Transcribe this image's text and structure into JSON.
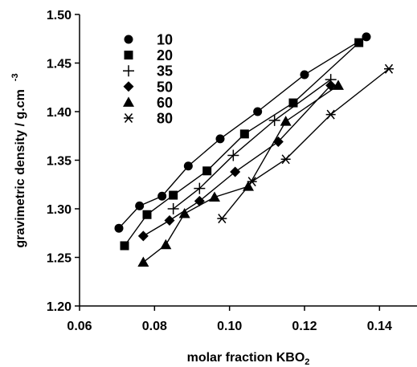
{
  "chart_data": {
    "type": "scatter",
    "title": "",
    "xlabel": "molar fraction KBO",
    "xlabel_subscript": "2",
    "ylabel": "gravimetric density / g.cm",
    "ylabel_superscript": "-3",
    "xlim": [
      0.06,
      0.15
    ],
    "ylim": [
      1.2,
      1.5
    ],
    "x_ticks": [
      "0.06",
      "0.08",
      "0.10",
      "0.12",
      "0.14"
    ],
    "x_tick_values": [
      0.06,
      0.08,
      0.1,
      0.12,
      0.14
    ],
    "y_ticks": [
      "1.20",
      "1.25",
      "1.30",
      "1.35",
      "1.40",
      "1.45",
      "1.50"
    ],
    "y_tick_values": [
      1.2,
      1.25,
      1.3,
      1.35,
      1.4,
      1.45,
      1.5
    ],
    "grid": false,
    "legend_position": "top-left",
    "series": [
      {
        "name": "10",
        "marker": "circle",
        "x": [
          0.0705,
          0.076,
          0.082,
          0.089,
          0.0975,
          0.1075,
          0.12,
          0.1365
        ],
        "y": [
          1.28,
          1.303,
          1.313,
          1.344,
          1.372,
          1.4,
          1.438,
          1.477
        ]
      },
      {
        "name": "20",
        "marker": "square",
        "x": [
          0.072,
          0.078,
          0.085,
          0.094,
          0.104,
          0.117,
          0.1345
        ],
        "y": [
          1.262,
          1.294,
          1.314,
          1.339,
          1.377,
          1.409,
          1.471
        ]
      },
      {
        "name": "35",
        "marker": "plus",
        "x": [
          0.085,
          0.092,
          0.101,
          0.112,
          0.127
        ],
        "y": [
          1.3,
          1.321,
          1.355,
          1.391,
          1.433
        ]
      },
      {
        "name": "50",
        "marker": "diamond",
        "x": [
          0.077,
          0.084,
          0.092,
          0.1015,
          0.113,
          0.127
        ],
        "y": [
          1.272,
          1.288,
          1.308,
          1.338,
          1.369,
          1.427
        ]
      },
      {
        "name": "60",
        "marker": "triangle",
        "x": [
          0.077,
          0.083,
          0.088,
          0.096,
          0.105,
          0.115,
          0.129
        ],
        "y": [
          1.245,
          1.263,
          1.295,
          1.312,
          1.323,
          1.39,
          1.427
        ]
      },
      {
        "name": "80",
        "marker": "star",
        "x": [
          0.098,
          0.106,
          0.115,
          0.127,
          0.1425
        ],
        "y": [
          1.29,
          1.328,
          1.351,
          1.397,
          1.444
        ]
      }
    ]
  }
}
